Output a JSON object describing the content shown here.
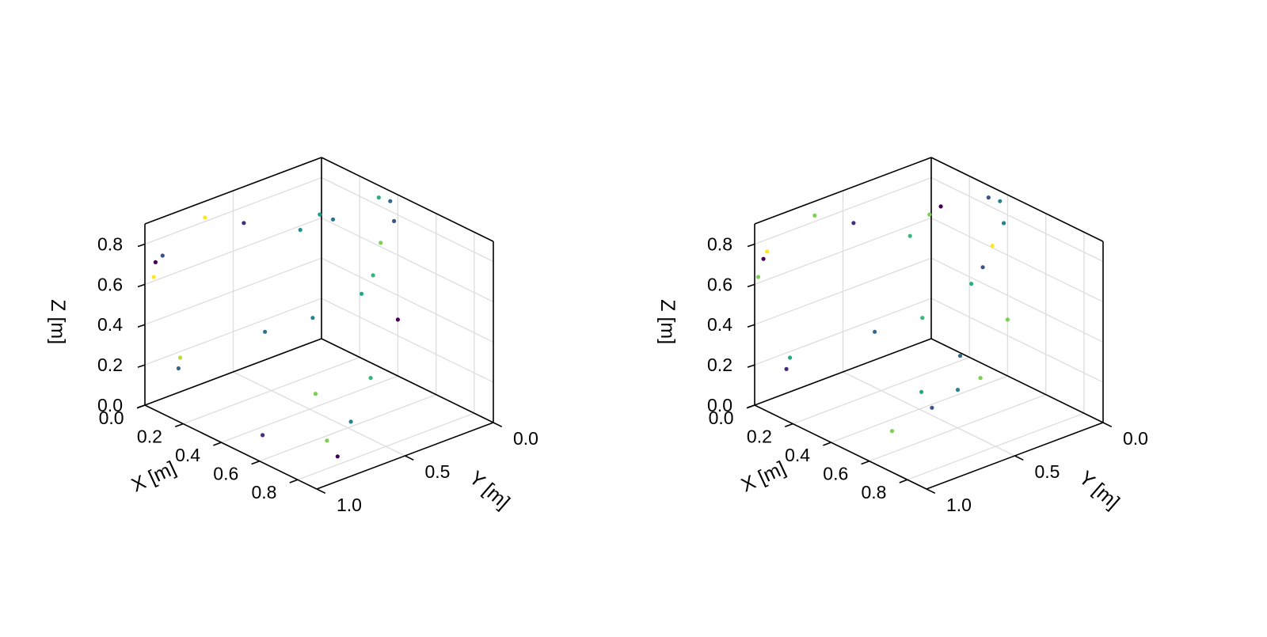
{
  "chart_data": [
    {
      "type": "scatter",
      "title": "",
      "xlabel": "X [m]",
      "ylabel": "Y [m]",
      "zlabel": "Z [m]",
      "xlim": [
        0,
        0.9
      ],
      "ylim": [
        0,
        1.0
      ],
      "zlim": [
        0,
        0.9
      ],
      "xticks": [
        "0.0",
        "0.2",
        "0.4",
        "0.6",
        "0.8"
      ],
      "yticks": [
        "0.0",
        "0.5",
        "1.0"
      ],
      "zticks": [
        "0.0",
        "0.2",
        "0.4",
        "0.6",
        "0.8"
      ],
      "grid": true,
      "colormap": "viridis",
      "points": [
        {
          "x": 0,
          "y": 0.9,
          "z": 0.71,
          "color": "#3b528b"
        },
        {
          "x": 0,
          "y": 0.94,
          "z": 0.69,
          "color": "#440154"
        },
        {
          "x": 0,
          "y": 0.95,
          "z": 0.62,
          "color": "#fde725"
        },
        {
          "x": 0,
          "y": 0.66,
          "z": 0.82,
          "color": "#fde725"
        },
        {
          "x": 0,
          "y": 0.44,
          "z": 0.72,
          "color": "#472d7b"
        },
        {
          "x": 0,
          "y": 0.12,
          "z": 0.58,
          "color": "#21918c"
        },
        {
          "x": 0,
          "y": 0.01,
          "z": 0.62,
          "color": "#1f9e89"
        },
        {
          "x": 0,
          "y": 0.8,
          "z": 0.17,
          "color": "#b5de2b"
        },
        {
          "x": 0,
          "y": 0.81,
          "z": 0.12,
          "color": "#31688e"
        },
        {
          "x": 0,
          "y": 0.32,
          "z": 0.14,
          "color": "#2c728e"
        },
        {
          "x": 0,
          "y": 0.05,
          "z": 0.12,
          "color": "#26828e"
        },
        {
          "x": 0.3,
          "y": 0,
          "z": 0.84,
          "color": "#2ab07f"
        },
        {
          "x": 0.36,
          "y": 0,
          "z": 0.85,
          "color": "#31688e"
        },
        {
          "x": 0.38,
          "y": 0,
          "z": 0.76,
          "color": "#3b528b"
        },
        {
          "x": 0.06,
          "y": 0,
          "z": 0.62,
          "color": "#2c728e"
        },
        {
          "x": 0.31,
          "y": 0,
          "z": 0.62,
          "color": "#7ad151"
        },
        {
          "x": 0.27,
          "y": 0,
          "z": 0.44,
          "color": "#35b779"
        },
        {
          "x": 0.21,
          "y": 0,
          "z": 0.32,
          "color": "#22a884"
        },
        {
          "x": 0.4,
          "y": 0,
          "z": 0.28,
          "color": "#440154"
        },
        {
          "x": 0.45,
          "y": 0.82,
          "z": 0,
          "color": "#472d7b"
        },
        {
          "x": 0.75,
          "y": 0.72,
          "z": 0,
          "color": "#440154"
        },
        {
          "x": 0.63,
          "y": 0.65,
          "z": 0,
          "color": "#7ad151"
        },
        {
          "x": 0.57,
          "y": 0.45,
          "z": 0,
          "color": "#26828e"
        },
        {
          "x": 0.32,
          "y": 0.38,
          "z": 0,
          "color": "#7ad151"
        },
        {
          "x": 0.35,
          "y": 0.1,
          "z": 0,
          "color": "#35b779"
        }
      ]
    },
    {
      "type": "scatter",
      "title": "",
      "xlabel": "X [m]",
      "ylabel": "Y [m]",
      "zlabel": "Z [m]",
      "xlim": [
        0,
        0.9
      ],
      "ylim": [
        0,
        1.0
      ],
      "zlim": [
        0,
        0.9
      ],
      "xticks": [
        "0.0",
        "0.2",
        "0.4",
        "0.6",
        "0.8"
      ],
      "yticks": [
        "0.0",
        "0.5",
        "1.0"
      ],
      "zticks": [
        "0.0",
        "0.2",
        "0.4",
        "0.6",
        "0.8"
      ],
      "grid": true,
      "colormap": "viridis",
      "points": [
        {
          "x": 0,
          "y": 0.93,
          "z": 0.74,
          "color": "#fde725"
        },
        {
          "x": 0,
          "y": 0.95,
          "z": 0.71,
          "color": "#440154"
        },
        {
          "x": 0,
          "y": 0.98,
          "z": 0.63,
          "color": "#7ad151"
        },
        {
          "x": 0,
          "y": 0.66,
          "z": 0.83,
          "color": "#7ad151"
        },
        {
          "x": 0,
          "y": 0.44,
          "z": 0.72,
          "color": "#472d7b"
        },
        {
          "x": 0,
          "y": 0.12,
          "z": 0.55,
          "color": "#35b779"
        },
        {
          "x": 0,
          "y": 0.01,
          "z": 0.62,
          "color": "#7ad151"
        },
        {
          "x": 0,
          "y": 0.8,
          "z": 0.17,
          "color": "#22a884"
        },
        {
          "x": 0,
          "y": 0.82,
          "z": 0.12,
          "color": "#472d7b"
        },
        {
          "x": 0,
          "y": 0.32,
          "z": 0.14,
          "color": "#31688e"
        },
        {
          "x": 0,
          "y": 0.05,
          "z": 0.12,
          "color": "#35b779"
        },
        {
          "x": 0.05,
          "y": 0,
          "z": 0.68,
          "color": "#440154"
        },
        {
          "x": 0.3,
          "y": 0,
          "z": 0.84,
          "color": "#3b528b"
        },
        {
          "x": 0.36,
          "y": 0,
          "z": 0.85,
          "color": "#26828e"
        },
        {
          "x": 0.38,
          "y": 0,
          "z": 0.75,
          "color": "#26828e"
        },
        {
          "x": 0.32,
          "y": 0,
          "z": 0.61,
          "color": "#fde725"
        },
        {
          "x": 0.27,
          "y": 0,
          "z": 0.48,
          "color": "#3b528b"
        },
        {
          "x": 0.21,
          "y": 0,
          "z": 0.37,
          "color": "#2ab07f"
        },
        {
          "x": 0.4,
          "y": 0,
          "z": 0.28,
          "color": "#7ad151"
        },
        {
          "x": 0.17,
          "y": 0.02,
          "z": 0,
          "color": "#31688e"
        },
        {
          "x": 0.47,
          "y": 0.73,
          "z": 0,
          "color": "#7ad151"
        },
        {
          "x": 0.37,
          "y": 0.25,
          "z": 0,
          "color": "#26828e"
        },
        {
          "x": 0.42,
          "y": 0.45,
          "z": 0,
          "color": "#3b528b"
        },
        {
          "x": 0.3,
          "y": 0.38,
          "z": 0,
          "color": "#22a884"
        },
        {
          "x": 0.35,
          "y": 0.1,
          "z": 0,
          "color": "#7ad151"
        }
      ]
    }
  ]
}
